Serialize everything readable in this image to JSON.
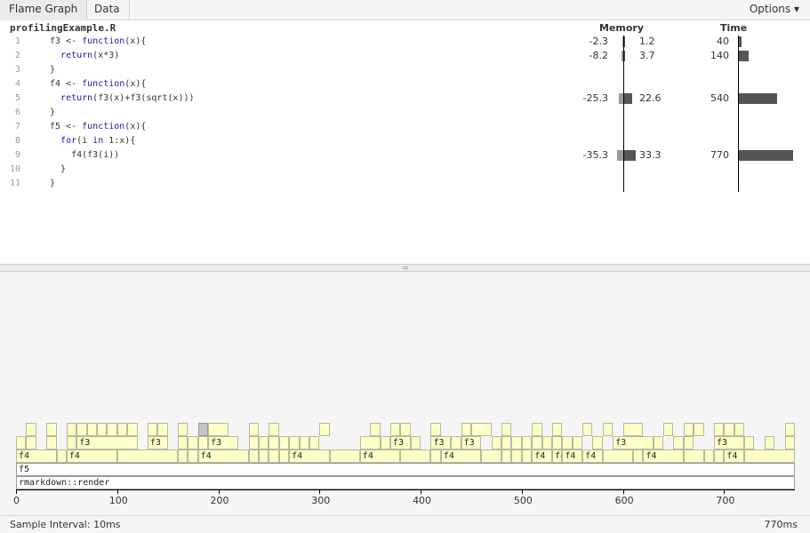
{
  "tabs": [
    {
      "label": "Flame Graph",
      "active": true
    },
    {
      "label": "Data",
      "active": false
    }
  ],
  "options_label": "Options ▾",
  "code": {
    "filename": "profilingExample.R",
    "memory_header": "Memory",
    "time_header": "Time",
    "lines": [
      {
        "n": "1",
        "src": [
          [
            "f3 <- ",
            ""
          ],
          [
            "function",
            "kw"
          ],
          [
            "(x){",
            ""
          ]
        ],
        "mem_neg": "-2.3",
        "mem_pos": "1.2",
        "time": "40"
      },
      {
        "n": "2",
        "src": [
          [
            "  ",
            ""
          ],
          [
            "return",
            "kw"
          ],
          [
            "(x*3)",
            ""
          ]
        ],
        "mem_neg": "-8.2",
        "mem_pos": "3.7",
        "time": "140"
      },
      {
        "n": "3",
        "src": [
          [
            "}",
            ""
          ]
        ]
      },
      {
        "n": "4",
        "src": [
          [
            "f4 <- ",
            ""
          ],
          [
            "function",
            "kw"
          ],
          [
            "(x){",
            ""
          ]
        ]
      },
      {
        "n": "5",
        "src": [
          [
            "  ",
            ""
          ],
          [
            "return",
            "kw"
          ],
          [
            "(f3(x)+f3(sqrt(x)))",
            ""
          ]
        ],
        "mem_neg": "-25.3",
        "mem_pos": "22.6",
        "time": "540"
      },
      {
        "n": "6",
        "src": [
          [
            "}",
            ""
          ]
        ]
      },
      {
        "n": "7",
        "src": [
          [
            "f5 <- ",
            ""
          ],
          [
            "function",
            "kw"
          ],
          [
            "(x){",
            ""
          ]
        ]
      },
      {
        "n": "8",
        "src": [
          [
            "  ",
            ""
          ],
          [
            "for",
            "kw"
          ],
          [
            "(i ",
            ""
          ],
          [
            "in",
            "kw"
          ],
          [
            " 1:x){",
            ""
          ]
        ]
      },
      {
        "n": "9",
        "src": [
          [
            "    f4(f3(i))",
            ""
          ]
        ],
        "mem_neg": "-35.3",
        "mem_pos": "33.3",
        "time": "770"
      },
      {
        "n": "10",
        "src": [
          [
            "  }",
            ""
          ]
        ]
      },
      {
        "n": "11",
        "src": [
          [
            "}",
            ""
          ]
        ]
      }
    ]
  },
  "flame": {
    "stacks": {
      "root": "rmarkdown::render",
      "f5": "f5",
      "f4": "f4",
      "f3": "f3"
    },
    "total_ms": 770,
    "ticks": [
      0,
      100,
      200,
      300,
      400,
      500,
      600,
      700
    ]
  },
  "status": {
    "interval": "Sample Interval: 10ms",
    "total": "770ms"
  },
  "colors": {
    "frame": "#ffffc8",
    "selected_frame": "#c4c4c4",
    "neg_bar": "#999999",
    "pos_bar": "#555555"
  }
}
